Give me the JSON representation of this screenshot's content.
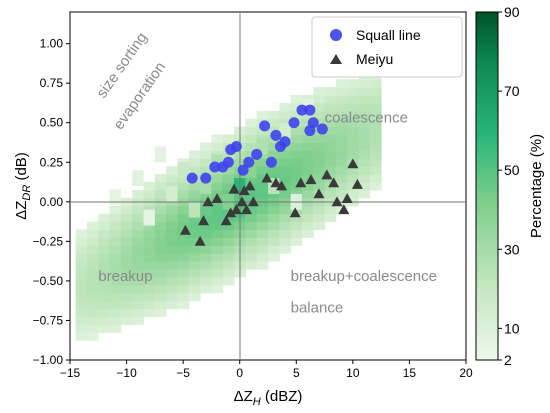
{
  "chart_data": {
    "type": "scatter",
    "xlabel": "ΔZ_H (dBZ)",
    "ylabel": "ΔZ_DR (dB)",
    "xlim": [
      -15,
      20
    ],
    "ylim": [
      -1.0,
      1.2
    ],
    "xticks": [
      -15,
      -10,
      -5,
      0,
      5,
      10,
      15,
      20
    ],
    "xtick_labels": [
      "−15",
      "−10",
      "−5",
      "0",
      "5",
      "10",
      "15",
      "20"
    ],
    "yticks": [
      -1.0,
      -0.75,
      -0.5,
      -0.25,
      0.0,
      0.25,
      0.5,
      0.75,
      1.0
    ],
    "ytick_labels": [
      "−1.00",
      "−0.75",
      "−0.50",
      "−0.25",
      "0.00",
      "0.25",
      "0.50",
      "0.75",
      "1.00"
    ],
    "reference_lines": {
      "x": 0,
      "y": 0
    },
    "legend": {
      "position": "top-right",
      "entries": [
        {
          "label": "Squall line",
          "marker": "circle",
          "color": "#3b3ff0"
        },
        {
          "label": "Meiyu",
          "marker": "triangle",
          "color": "#3a3a3a"
        }
      ]
    },
    "series": [
      {
        "name": "Squall line",
        "marker": "circle",
        "color": "#3b3ff0",
        "points": [
          [
            -4.2,
            0.15
          ],
          [
            -3.0,
            0.15
          ],
          [
            -2.2,
            0.22
          ],
          [
            -1.5,
            0.22
          ],
          [
            -1.0,
            0.25
          ],
          [
            -0.8,
            0.33
          ],
          [
            -0.3,
            0.35
          ],
          [
            0.3,
            0.2
          ],
          [
            0.8,
            0.25
          ],
          [
            1.5,
            0.3
          ],
          [
            2.2,
            0.48
          ],
          [
            2.8,
            0.25
          ],
          [
            3.2,
            0.42
          ],
          [
            3.6,
            0.35
          ],
          [
            4.0,
            0.38
          ],
          [
            4.8,
            0.5
          ],
          [
            5.5,
            0.58
          ],
          [
            6.2,
            0.58
          ],
          [
            6.5,
            0.5
          ],
          [
            6.2,
            0.45
          ],
          [
            7.3,
            0.46
          ]
        ]
      },
      {
        "name": "Meiyu",
        "marker": "triangle",
        "color": "#3a3a3a",
        "points": [
          [
            -4.8,
            -0.18
          ],
          [
            -3.5,
            -0.25
          ],
          [
            -3.2,
            -0.12
          ],
          [
            -2.8,
            0.0
          ],
          [
            -2.0,
            0.02
          ],
          [
            -1.2,
            -0.12
          ],
          [
            -0.8,
            -0.07
          ],
          [
            -0.5,
            0.08
          ],
          [
            -0.3,
            -0.05
          ],
          [
            0.2,
            0.0
          ],
          [
            0.4,
            0.07
          ],
          [
            0.6,
            -0.05
          ],
          [
            0.9,
            0.1
          ],
          [
            1.2,
            0.0
          ],
          [
            2.4,
            0.15
          ],
          [
            3.2,
            0.12
          ],
          [
            3.7,
            0.1
          ],
          [
            4.9,
            -0.07
          ],
          [
            5.4,
            0.12
          ],
          [
            6.3,
            0.14
          ],
          [
            7.0,
            0.05
          ],
          [
            7.7,
            0.17
          ],
          [
            8.3,
            0.12
          ],
          [
            8.6,
            0.0
          ],
          [
            9.2,
            -0.05
          ],
          [
            9.5,
            0.02
          ],
          [
            10.0,
            0.24
          ],
          [
            10.4,
            0.11
          ]
        ]
      }
    ],
    "heatmap": {
      "description_range": [
        2,
        90
      ],
      "cells": [
        {
          "x": -11,
          "y": 0.03,
          "pct": 4
        },
        {
          "x": -9,
          "y": 0.15,
          "pct": 5
        },
        {
          "x": -8,
          "y": -0.1,
          "pct": 4
        },
        {
          "x": -7,
          "y": 0.3,
          "pct": 4
        },
        {
          "x": -6,
          "y": 0.05,
          "pct": 8
        },
        {
          "x": -5,
          "y": 0.2,
          "pct": 10
        },
        {
          "x": -4,
          "y": -0.05,
          "pct": 14
        },
        {
          "x": -3,
          "y": 0.1,
          "pct": 20
        },
        {
          "x": -2,
          "y": 0.25,
          "pct": 18
        },
        {
          "x": -1,
          "y": 0.0,
          "pct": 32
        },
        {
          "x": 0,
          "y": 0.1,
          "pct": 55
        },
        {
          "x": 0,
          "y": -0.05,
          "pct": 45
        },
        {
          "x": 1,
          "y": 0.2,
          "pct": 30
        },
        {
          "x": 2,
          "y": 0.35,
          "pct": 18
        },
        {
          "x": 3,
          "y": 0.1,
          "pct": 14
        },
        {
          "x": 4,
          "y": 0.45,
          "pct": 8
        },
        {
          "x": 5,
          "y": 0.0,
          "pct": 6
        },
        {
          "x": 6,
          "y": 0.6,
          "pct": 4
        }
      ]
    },
    "colorbar": {
      "label": "Percentage (%)",
      "range": [
        2,
        90
      ],
      "tick_labels": [
        "2",
        "10",
        "30",
        "50",
        "70",
        "90"
      ]
    },
    "annotations": [
      {
        "text": "size sorting",
        "x": -12.0,
        "y": 0.65,
        "rotation": -55
      },
      {
        "text": "evaporation",
        "x": -10.5,
        "y": 0.45,
        "rotation": -55
      },
      {
        "text": "coalescence",
        "x": 7.5,
        "y": 0.5,
        "rotation": 0
      },
      {
        "text": "breakup",
        "x": -12.5,
        "y": -0.5,
        "rotation": 0
      },
      {
        "text": "breakup+coalescence",
        "x": 4.5,
        "y": -0.5,
        "rotation": 0
      },
      {
        "text": "balance",
        "x": 4.5,
        "y": -0.7,
        "rotation": 0
      }
    ]
  }
}
